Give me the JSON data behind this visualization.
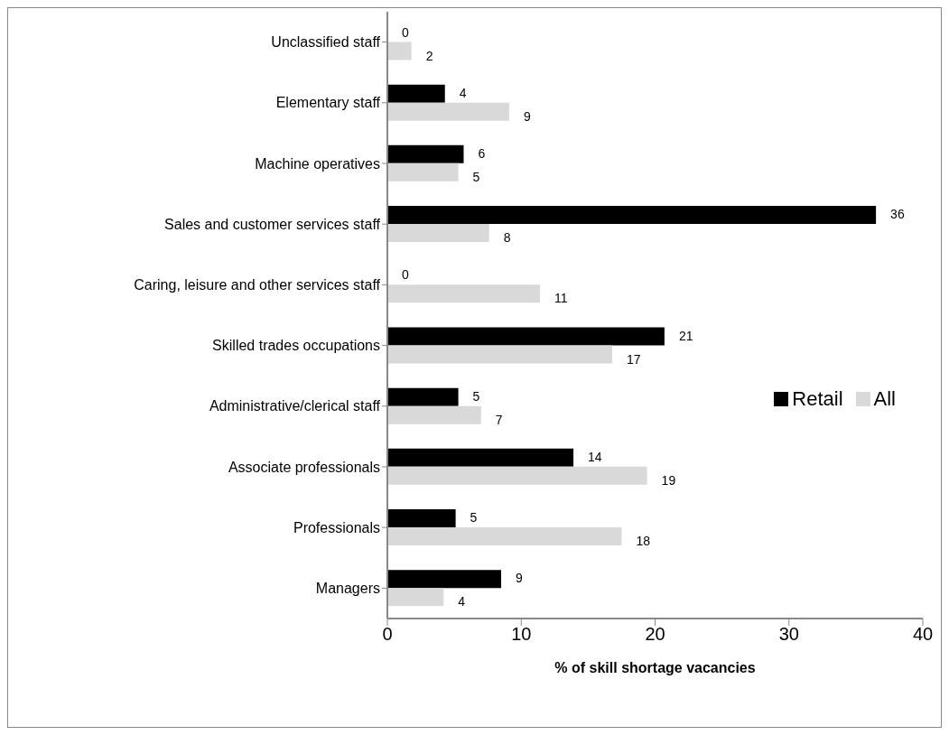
{
  "chart_data": {
    "type": "bar",
    "orientation": "horizontal",
    "xlabel": "% of skill shortage vacancies",
    "categories": [
      "Unclassified staff",
      "Elementary staff",
      "Machine operatives",
      "Sales and customer services staff",
      "Caring, leisure and other services staff",
      "Skilled trades occupations",
      "Administrative/clerical staff",
      "Associate professionals",
      "Professionals",
      "Managers"
    ],
    "series": [
      {
        "name": "Retail",
        "color": "#000000",
        "values": [
          0,
          4.3,
          5.7,
          36.5,
          0,
          20.7,
          5.3,
          13.9,
          5.1,
          8.5
        ],
        "value_labels": [
          "0",
          "4",
          "6",
          "36",
          "0",
          "21",
          "5",
          "14",
          "5",
          "9"
        ]
      },
      {
        "name": "All",
        "color": "#d9d9d9",
        "values": [
          1.8,
          9.1,
          5.3,
          7.6,
          11.4,
          16.8,
          7.0,
          19.4,
          17.5,
          4.2
        ],
        "value_labels": [
          "2",
          "9",
          "5",
          "8",
          "11",
          "17",
          "7",
          "19",
          "18",
          "4"
        ]
      }
    ],
    "xlim": [
      0,
      40
    ],
    "xticks": [
      0,
      10,
      20,
      30,
      40
    ],
    "grid": false,
    "legend": "right"
  }
}
